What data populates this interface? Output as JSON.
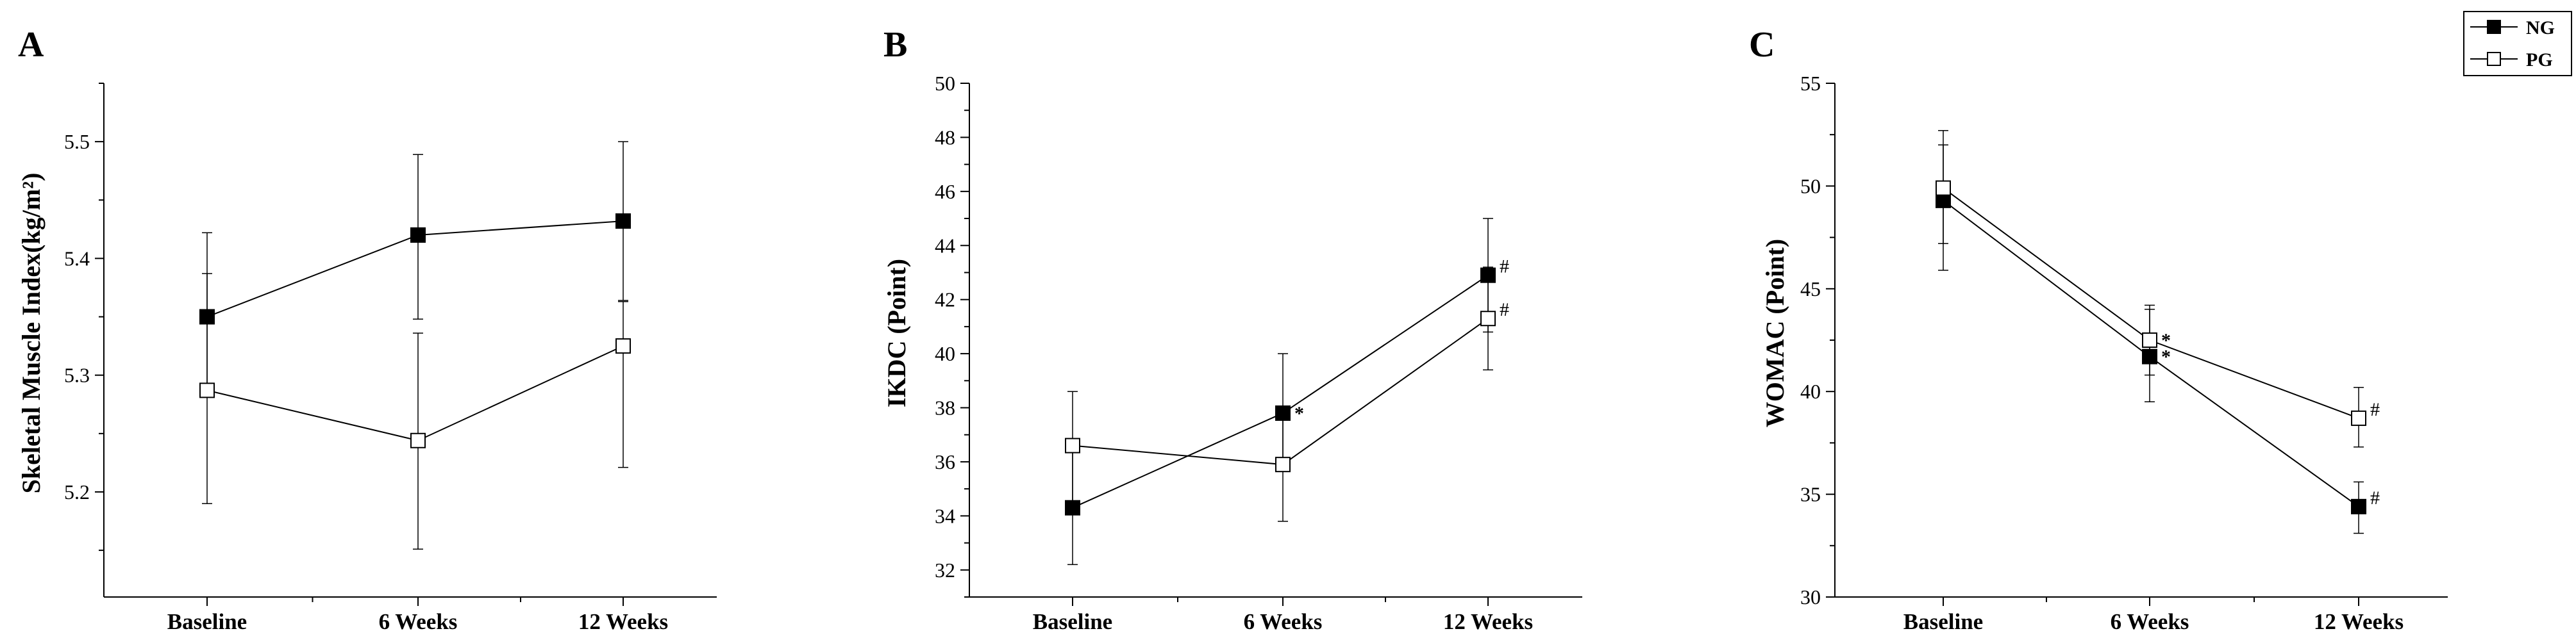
{
  "legend": {
    "entries": [
      {
        "name": "NG",
        "marker": "filled-square"
      },
      {
        "name": "PG",
        "marker": "open-square"
      }
    ]
  },
  "chart_data": [
    {
      "panel": "A",
      "type": "line",
      "categories": [
        "Baseline",
        "6 Weeks",
        "12 Weeks"
      ],
      "ylabel": "Skeletal Muscle Index(kg/m²)",
      "ylim": [
        5.11,
        5.55
      ],
      "yticks": [
        5.2,
        5.3,
        5.4,
        5.5
      ],
      "ytick_labels": [
        "5.2",
        "5.3",
        "5.4",
        "5.5"
      ],
      "series": [
        {
          "name": "NG",
          "values": [
            5.35,
            5.42,
            5.432
          ],
          "err_low": [
            5.288,
            5.348,
            5.364
          ],
          "err_high": [
            5.422,
            5.489,
            5.5
          ]
        },
        {
          "name": "PG",
          "values": [
            5.287,
            5.244,
            5.325
          ],
          "err_low": [
            5.19,
            5.151,
            5.221
          ],
          "err_high": [
            5.387,
            5.336,
            5.363
          ]
        }
      ],
      "annotations": []
    },
    {
      "panel": "B",
      "type": "line",
      "categories": [
        "Baseline",
        "6 Weeks",
        "12 Weeks"
      ],
      "ylabel": "IKDC (Point)",
      "ylim": [
        31,
        50
      ],
      "yticks": [
        32,
        34,
        36,
        38,
        40,
        42,
        44,
        46,
        48,
        50
      ],
      "ytick_labels": [
        "32",
        "34",
        "36",
        "38",
        "40",
        "42",
        "44",
        "46",
        "48",
        "50"
      ],
      "series": [
        {
          "name": "NG",
          "values": [
            34.3,
            37.8,
            42.9
          ],
          "err_low": [
            32.2,
            35.8,
            40.8
          ],
          "err_high": [
            36.4,
            40.0,
            45.0
          ]
        },
        {
          "name": "PG",
          "values": [
            36.6,
            35.9,
            41.3
          ],
          "err_low": [
            34.4,
            33.8,
            39.4
          ],
          "err_high": [
            38.6,
            37.9,
            43.2
          ]
        }
      ],
      "annotations": [
        {
          "text": "*",
          "category": "6 Weeks",
          "series": "NG"
        },
        {
          "text": "#",
          "category": "12 Weeks",
          "series": "NG"
        },
        {
          "text": "#",
          "category": "12 Weeks",
          "series": "PG"
        }
      ]
    },
    {
      "panel": "C",
      "type": "line",
      "categories": [
        "Baseline",
        "6 Weeks",
        "12 Weeks"
      ],
      "ylabel": "WOMAC (Point)",
      "ylim": [
        30,
        55
      ],
      "yticks": [
        30,
        35,
        40,
        45,
        50,
        55
      ],
      "ytick_labels": [
        "30",
        "35",
        "40",
        "45",
        "50",
        "55"
      ],
      "series": [
        {
          "name": "NG",
          "values": [
            49.3,
            41.7,
            34.4
          ],
          "err_low": [
            45.9,
            39.5,
            33.1
          ],
          "err_high": [
            52.0,
            44.0,
            35.6
          ]
        },
        {
          "name": "PG",
          "values": [
            49.9,
            42.5,
            38.7
          ],
          "err_low": [
            47.2,
            40.8,
            37.3
          ],
          "err_high": [
            52.7,
            44.2,
            40.2
          ]
        }
      ],
      "annotations": [
        {
          "text": "*",
          "category": "6 Weeks",
          "series": "PG"
        },
        {
          "text": "*",
          "category": "6 Weeks",
          "series": "NG"
        },
        {
          "text": "#",
          "category": "12 Weeks",
          "series": "PG"
        },
        {
          "text": "#",
          "category": "12 Weeks",
          "series": "NG"
        }
      ]
    }
  ]
}
